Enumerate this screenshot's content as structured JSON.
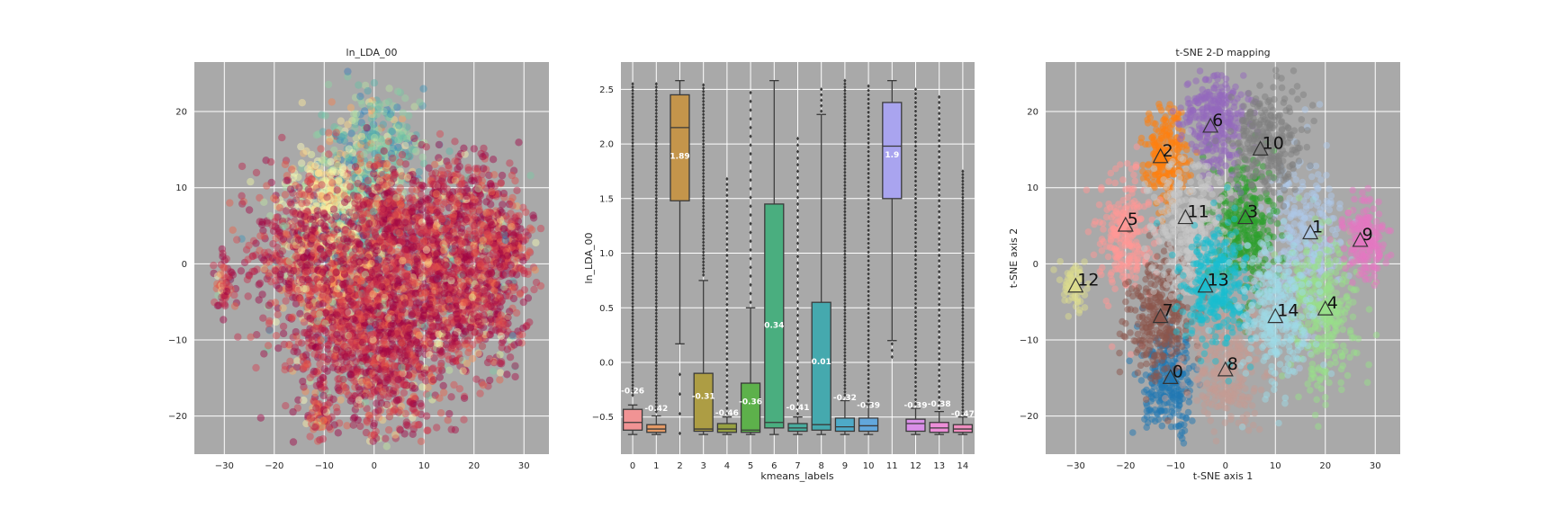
{
  "chart_data": [
    {
      "type": "scatter",
      "title": "ln_LDA_00",
      "xlabel": "",
      "ylabel": "",
      "xlim": [
        -36,
        35
      ],
      "ylim": [
        -25,
        26.5
      ],
      "xticks": [
        -30,
        -20,
        -10,
        0,
        10,
        20,
        30
      ],
      "yticks": [
        -20,
        -10,
        0,
        10,
        20
      ],
      "xtick_labels": [
        "−30",
        "−20",
        "−10",
        "0",
        "10",
        "20",
        "30"
      ],
      "ytick_labels": [
        "−20",
        "−10",
        "0",
        "10",
        "20"
      ],
      "background": "#a9a9a9",
      "grid": true,
      "colormap": "Spectral",
      "color_by": "ln_LDA_00",
      "color_range": [
        -0.7,
        2.6
      ],
      "clusters": [
        {
          "cx": -6,
          "cy": 0,
          "sx": 5,
          "sy": 4,
          "n": 420,
          "c": 0.28
        },
        {
          "cx": -4,
          "cy": 7,
          "sx": 4,
          "sy": 3,
          "n": 420,
          "c": 0.8
        },
        {
          "cx": 0,
          "cy": 14,
          "sx": 5,
          "sy": 5,
          "n": 420,
          "c": 0.8
        },
        {
          "cx": -9,
          "cy": 9,
          "sx": 4,
          "sy": 3,
          "n": 220,
          "c": 0.45
        },
        {
          "cx": 2,
          "cy": 7,
          "sx": 3,
          "sy": 3,
          "n": 220,
          "c": 0.05
        },
        {
          "cx": 17,
          "cy": 8,
          "sx": 5,
          "sy": 4,
          "n": 300,
          "c": 0.05
        },
        {
          "cx": -15,
          "cy": 2,
          "sx": 5,
          "sy": 5,
          "n": 450,
          "c": 0.05
        },
        {
          "cx": -6,
          "cy": -10,
          "sx": 6,
          "sy": 5,
          "n": 450,
          "c": 0.05
        },
        {
          "cx": 5,
          "cy": -13,
          "sx": 6,
          "sy": 5,
          "n": 450,
          "c": 0.05
        },
        {
          "cx": 12,
          "cy": -3,
          "sx": 6,
          "sy": 5,
          "n": 450,
          "c": 0.05
        },
        {
          "cx": 20,
          "cy": -5,
          "sx": 5,
          "sy": 5,
          "n": 420,
          "c": 0.05
        },
        {
          "cx": 26,
          "cy": 2,
          "sx": 3,
          "sy": 3,
          "n": 240,
          "c": 0.05
        },
        {
          "cx": 8,
          "cy": 3,
          "sx": 6,
          "sy": 4,
          "n": 400,
          "c": 0.05
        },
        {
          "cx": -1,
          "cy": -5,
          "sx": 5,
          "sy": 5,
          "n": 420,
          "c": 0.05
        },
        {
          "cx": -30,
          "cy": -3,
          "sx": 1.2,
          "sy": 2,
          "n": 60,
          "c": 0.05
        },
        {
          "cx": -11,
          "cy": -20,
          "sx": 1.5,
          "sy": 1.5,
          "n": 60,
          "c": 0.1
        }
      ]
    },
    {
      "type": "box",
      "title": "",
      "xlabel": "kmeans_labels",
      "ylabel": "ln_LDA_00",
      "ylim": [
        -0.84,
        2.75
      ],
      "yticks": [
        -0.5,
        0.0,
        0.5,
        1.0,
        1.5,
        2.0,
        2.5
      ],
      "ytick_labels": [
        "−0.5",
        "0.0",
        "0.5",
        "1.0",
        "1.5",
        "2.0",
        "2.5"
      ],
      "background": "#a9a9a9",
      "grid": true,
      "categories": [
        "0",
        "1",
        "2",
        "3",
        "4",
        "5",
        "6",
        "7",
        "8",
        "9",
        "10",
        "11",
        "12",
        "13",
        "14"
      ],
      "boxes": [
        {
          "label": "0",
          "color": "#f19394",
          "q1": -0.62,
          "median": -0.55,
          "q3": -0.43,
          "wlo": -0.66,
          "whi": -0.39,
          "mean": -0.26,
          "mean_label": "-0.26",
          "fliers": [
            [
              -0.3,
              2.55,
              0.03
            ]
          ]
        },
        {
          "label": "1",
          "color": "#e59a66",
          "q1": -0.64,
          "median": -0.61,
          "q3": -0.57,
          "wlo": -0.66,
          "whi": -0.49,
          "mean": -0.42,
          "mean_label": "-0.42",
          "fliers": [
            [
              -0.45,
              2.55,
              0.03
            ]
          ]
        },
        {
          "label": "2",
          "color": "#c4954b",
          "q1": 1.48,
          "median": 2.15,
          "q3": 2.45,
          "wlo": 0.17,
          "whi": 2.58,
          "mean": 1.89,
          "mean_label": "1.89",
          "fliers": [
            [
              -0.65,
              -0.1,
              0.18
            ]
          ]
        },
        {
          "label": "3",
          "color": "#ad9d44",
          "q1": -0.63,
          "median": -0.61,
          "q3": -0.1,
          "wlo": -0.66,
          "whi": 0.75,
          "mean": -0.31,
          "mean_label": "-0.31",
          "fliers": [
            [
              0.8,
              2.55,
              0.03
            ]
          ]
        },
        {
          "label": "4",
          "color": "#97a142",
          "q1": -0.64,
          "median": -0.61,
          "q3": -0.56,
          "wlo": -0.66,
          "whi": -0.5,
          "mean": -0.46,
          "mean_label": "-0.46",
          "fliers": [
            [
              -0.47,
              1.7,
              0.05
            ]
          ]
        },
        {
          "label": "5",
          "color": "#5db14b",
          "q1": -0.64,
          "median": -0.62,
          "q3": -0.19,
          "wlo": -0.66,
          "whi": 0.5,
          "mean": -0.36,
          "mean_label": "-0.36",
          "fliers": [
            [
              0.55,
              2.5,
              0.08
            ]
          ]
        },
        {
          "label": "6",
          "color": "#4aae7f",
          "q1": -0.6,
          "median": -0.55,
          "q3": 1.45,
          "wlo": -0.66,
          "whi": 2.58,
          "mean": 0.34,
          "mean_label": "0.34",
          "fliers": []
        },
        {
          "label": "7",
          "color": "#48ac9e",
          "q1": -0.63,
          "median": -0.6,
          "q3": -0.56,
          "wlo": -0.66,
          "whi": -0.5,
          "mean": -0.41,
          "mean_label": "-0.41",
          "fliers": [
            [
              -0.47,
              2.1,
              0.06
            ]
          ]
        },
        {
          "label": "8",
          "color": "#45a9ae",
          "q1": -0.62,
          "median": -0.57,
          "q3": 0.55,
          "wlo": -0.66,
          "whi": 2.27,
          "mean": 0.01,
          "mean_label": "0.01",
          "fliers": [
            [
              2.3,
              2.5,
              0.05
            ]
          ]
        },
        {
          "label": "9",
          "color": "#4eaac8",
          "q1": -0.63,
          "median": -0.59,
          "q3": -0.51,
          "wlo": -0.66,
          "whi": -0.35,
          "mean": -0.32,
          "mean_label": "-0.32",
          "fliers": [
            [
              -0.3,
              2.58,
              0.03
            ]
          ]
        },
        {
          "label": "10",
          "color": "#62a7dc",
          "q1": -0.63,
          "median": -0.58,
          "q3": -0.51,
          "wlo": -0.66,
          "whi": -0.38,
          "mean": -0.39,
          "mean_label": "-0.39",
          "fliers": [
            [
              -0.35,
              2.55,
              0.04
            ]
          ]
        },
        {
          "label": "11",
          "color": "#a9a4ef",
          "q1": 1.5,
          "median": 1.98,
          "q3": 2.38,
          "wlo": 0.2,
          "whi": 2.58,
          "mean": 1.9,
          "mean_label": "1.9",
          "fliers": [
            [
              0.05,
              0.18,
              0.06
            ]
          ]
        },
        {
          "label": "12",
          "color": "#d98fe8",
          "q1": -0.63,
          "median": -0.56,
          "q3": -0.52,
          "wlo": -0.66,
          "whi": -0.42,
          "mean": -0.39,
          "mean_label": "-0.39",
          "fliers": [
            [
              -0.38,
              2.5,
              0.04
            ]
          ]
        },
        {
          "label": "13",
          "color": "#ec8ed8",
          "q1": -0.64,
          "median": -0.6,
          "q3": -0.55,
          "wlo": -0.66,
          "whi": -0.45,
          "mean": -0.38,
          "mean_label": "-0.38",
          "fliers": [
            [
              -0.42,
              2.45,
              0.05
            ]
          ]
        },
        {
          "label": "14",
          "color": "#f08ec0",
          "q1": -0.64,
          "median": -0.61,
          "q3": -0.57,
          "wlo": -0.66,
          "whi": -0.5,
          "mean": -0.47,
          "mean_label": "-0.47",
          "fliers": [
            [
              -0.47,
              1.75,
              0.03
            ]
          ]
        }
      ]
    },
    {
      "type": "scatter",
      "title": "t-SNE 2-D mapping",
      "xlabel": "t-SNE axis 1",
      "ylabel": "t-SNE axis 2",
      "xlim": [
        -36,
        35
      ],
      "ylim": [
        -25,
        26.5
      ],
      "xticks": [
        -30,
        -20,
        -10,
        0,
        10,
        20,
        30
      ],
      "yticks": [
        -20,
        -10,
        0,
        10,
        20
      ],
      "xtick_labels": [
        "−30",
        "−20",
        "−10",
        "0",
        "10",
        "20",
        "30"
      ],
      "ytick_labels": [
        "−20",
        "−10",
        "0",
        "10",
        "20"
      ],
      "background": "#a9a9a9",
      "grid": true,
      "clusters": [
        {
          "label": "0",
          "color": "#1f77b4",
          "cx": -11,
          "cy": -16,
          "sx": 2.6,
          "sy": 3.2,
          "n": 260,
          "mx": -11,
          "my": -15
        },
        {
          "label": "1",
          "color": "#aec7e8",
          "cx": 16,
          "cy": 3,
          "sx": 3.6,
          "sy": 5.5,
          "n": 320,
          "mx": 17,
          "my": 4
        },
        {
          "label": "2",
          "color": "#ff7f0e",
          "cx": -12,
          "cy": 14,
          "sx": 2.2,
          "sy": 3,
          "n": 240,
          "mx": -13,
          "my": 14
        },
        {
          "label": "3",
          "color": "#2ca02c",
          "cx": 4,
          "cy": 5,
          "sx": 3,
          "sy": 4.5,
          "n": 320,
          "mx": 4,
          "my": 6
        },
        {
          "label": "4",
          "color": "#98df8a",
          "cx": 20,
          "cy": -6,
          "sx": 3.4,
          "sy": 5,
          "n": 320,
          "mx": 20,
          "my": -6
        },
        {
          "label": "5",
          "color": "#ff9896",
          "cx": -20,
          "cy": 4,
          "sx": 2.5,
          "sy": 4,
          "n": 240,
          "mx": -20,
          "my": 5
        },
        {
          "label": "6",
          "color": "#9467bd",
          "cx": -2,
          "cy": 19,
          "sx": 3.2,
          "sy": 3.2,
          "n": 300,
          "mx": -3,
          "my": 18
        },
        {
          "label": "7",
          "color": "#8c564b",
          "cx": -13,
          "cy": -7,
          "sx": 3.2,
          "sy": 4,
          "n": 300,
          "mx": -13,
          "my": -7
        },
        {
          "label": "8",
          "color": "#c49c94",
          "cx": 0,
          "cy": -14,
          "sx": 3.8,
          "sy": 3.5,
          "n": 300,
          "mx": 0,
          "my": -14
        },
        {
          "label": "9",
          "color": "#e377c2",
          "cx": 28,
          "cy": 3,
          "sx": 2,
          "sy": 2.5,
          "n": 200,
          "mx": 27,
          "my": 3
        },
        {
          "label": "10",
          "color": "#7f7f7f",
          "cx": 8,
          "cy": 16,
          "sx": 3.5,
          "sy": 3.5,
          "n": 280,
          "mx": 7,
          "my": 15
        },
        {
          "label": "11",
          "color": "#c7c7c7",
          "cx": -7,
          "cy": 5,
          "sx": 3.5,
          "sy": 4.5,
          "n": 320,
          "mx": -8,
          "my": 6
        },
        {
          "label": "12",
          "color": "#dbdb8d",
          "cx": -30,
          "cy": -3,
          "sx": 1.2,
          "sy": 1.6,
          "n": 70,
          "mx": -30,
          "my": -3
        },
        {
          "label": "13",
          "color": "#17becf",
          "cx": -2,
          "cy": -3,
          "sx": 3.4,
          "sy": 4,
          "n": 320,
          "mx": -4,
          "my": -3
        },
        {
          "label": "14",
          "color": "#9edae5",
          "cx": 10,
          "cy": -7,
          "sx": 3.6,
          "sy": 5,
          "n": 320,
          "mx": 10,
          "my": -7
        }
      ]
    }
  ]
}
